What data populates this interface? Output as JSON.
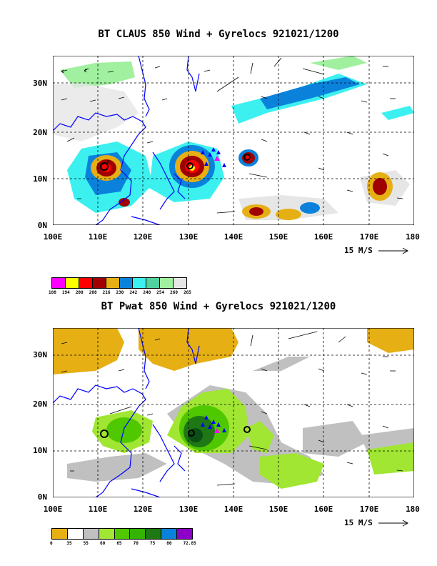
{
  "top": {
    "title": "BT CLAUS 850 Wind + Gyrelocs 921021/1200",
    "lat_labels": [
      "30N",
      "20N",
      "10N",
      "0N"
    ],
    "lon_labels": [
      "100E",
      "110E",
      "120E",
      "130E",
      "140E",
      "150E",
      "160E",
      "170E",
      "180"
    ],
    "scale_label": "15 M/S",
    "colorbar_colors": [
      "#ff00ff",
      "#ffff00",
      "#ff0000",
      "#a00000",
      "#e6af14",
      "#0a82dc",
      "#3cf0f0",
      "#50d2a0",
      "#a0f0a0",
      "#e6e6e6"
    ],
    "colorbar_ticks": [
      "188",
      "194",
      "200",
      "208",
      "216",
      "230",
      "242",
      "248",
      "254",
      "260",
      "265"
    ]
  },
  "bottom": {
    "title": "BT Pwat 850 Wind + Gyrelocs 921021/1200",
    "lat_labels": [
      "30N",
      "20N",
      "10N",
      "0N"
    ],
    "lon_labels": [
      "100E",
      "110E",
      "120E",
      "130E",
      "140E",
      "150E",
      "160E",
      "170E",
      "180"
    ],
    "scale_label": "15 M/S",
    "colorbar_colors": [
      "#e6af14",
      "#ffffff",
      "#c0c0c0",
      "#a0e632",
      "#50c800",
      "#32b400",
      "#1e7814",
      "#0a82dc",
      "#8c00c8"
    ],
    "colorbar_ticks": [
      "0",
      "35",
      "55",
      "60",
      "65",
      "70",
      "75",
      "80",
      "72.85"
    ]
  },
  "colors": {
    "coast": "#0000ff",
    "grid": "#000000",
    "gyre_marker": "#0000ff",
    "gyre_center": "#ff00ff"
  }
}
